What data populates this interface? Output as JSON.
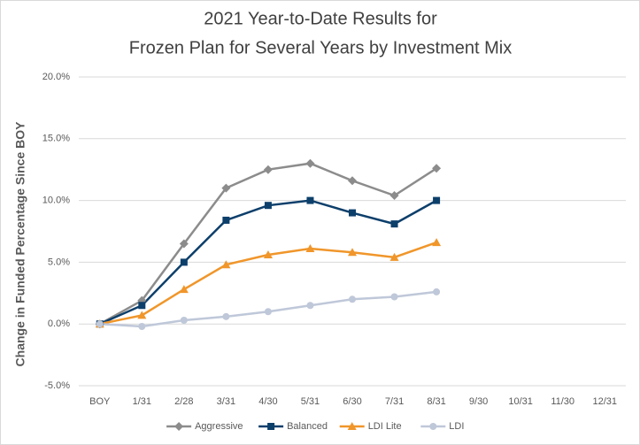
{
  "chart_data": {
    "type": "line",
    "title": [
      "2021 Year-to-Date Results for",
      "Frozen Plan for Several Years by Investment Mix"
    ],
    "y_label": "Change in Funded Percentage Since BOY",
    "categories": [
      "BOY",
      "1/31",
      "2/28",
      "3/31",
      "4/30",
      "5/31",
      "6/30",
      "7/31",
      "8/31",
      "9/30",
      "10/31",
      "11/30",
      "12/31"
    ],
    "series": [
      {
        "name": "Aggressive",
        "color": "#8c8c8c",
        "marker": "diamond",
        "values": [
          0,
          1.9,
          6.5,
          11.0,
          12.5,
          13.0,
          11.6,
          10.4,
          12.6,
          null,
          null,
          null,
          null
        ]
      },
      {
        "name": "Balanced",
        "color": "#0d3f6b",
        "marker": "square",
        "values": [
          0,
          1.5,
          5.0,
          8.4,
          9.6,
          10.0,
          9.0,
          8.1,
          10.0,
          null,
          null,
          null,
          null
        ]
      },
      {
        "name": "LDI Lite",
        "color": "#f0962a",
        "marker": "triangle",
        "values": [
          0,
          0.7,
          2.8,
          4.8,
          5.6,
          6.1,
          5.8,
          5.4,
          6.6,
          null,
          null,
          null,
          null
        ]
      },
      {
        "name": "LDI",
        "color": "#bfc8d9",
        "marker": "circle",
        "values": [
          0,
          -0.2,
          0.3,
          0.6,
          1.0,
          1.5,
          2.0,
          2.2,
          2.6,
          null,
          null,
          null,
          null
        ]
      }
    ],
    "ylim": [
      -5,
      20
    ],
    "yticks": [
      {
        "value": -5,
        "label": "-5.0%"
      },
      {
        "value": 0,
        "label": "0.0%"
      },
      {
        "value": 5,
        "label": "5.0%"
      },
      {
        "value": 10,
        "label": "10.0%"
      },
      {
        "value": 15,
        "label": "15.0%"
      },
      {
        "value": 20,
        "label": "20.0%"
      }
    ],
    "grid": true,
    "legend": "bottom"
  }
}
